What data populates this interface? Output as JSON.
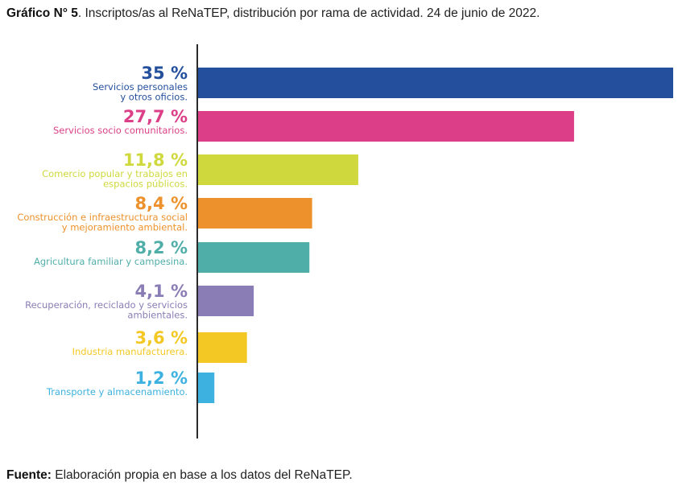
{
  "title": {
    "prefix": "Gráfico N° 5",
    "text": ". Inscriptos/as al ReNaTEP, distribución por rama de actividad. 24 de junio de 2022."
  },
  "source": {
    "label": "Fuente:",
    "text": " Elaboración propia en base a los datos del ReNaTEP."
  },
  "chart_data": {
    "type": "bar",
    "orientation": "horizontal",
    "title": "Inscriptos/as al ReNaTEP, distribución por rama de actividad. 24 de junio de 2022.",
    "xlabel": "",
    "ylabel": "",
    "xlim": [
      0,
      35
    ],
    "grid": false,
    "legend": "none",
    "unit": "%",
    "categories": [
      [
        "Servicios  personales",
        "y otros oficios."
      ],
      [
        "Servicios socio comunitarios."
      ],
      [
        "Comercio popular y trabajos en",
        "espacios públicos."
      ],
      [
        "Construcción e infraestructura social",
        "y mejoramiento ambiental."
      ],
      [
        "Agricultura familiar y campesina."
      ],
      [
        "Recuperación, reciclado y servicios",
        "ambientales."
      ],
      [
        "Industria manufacturera."
      ],
      [
        "Transporte y almacenamiento."
      ]
    ],
    "values": [
      35,
      27.7,
      11.8,
      8.4,
      8.2,
      4.1,
      3.6,
      1.2
    ],
    "value_labels": [
      "35 %",
      "27,7 %",
      "11,8 %",
      "8,4 %",
      "8,2 %",
      "4,1 %",
      "3,6 %",
      "1,2 %"
    ],
    "colors": [
      "#244f9c",
      "#dc3f87",
      "#cfd93d",
      "#ec912b",
      "#50aea9",
      "#8a7db5",
      "#f3c824",
      "#3db1df"
    ]
  },
  "axis_color": "#2a2a2a"
}
